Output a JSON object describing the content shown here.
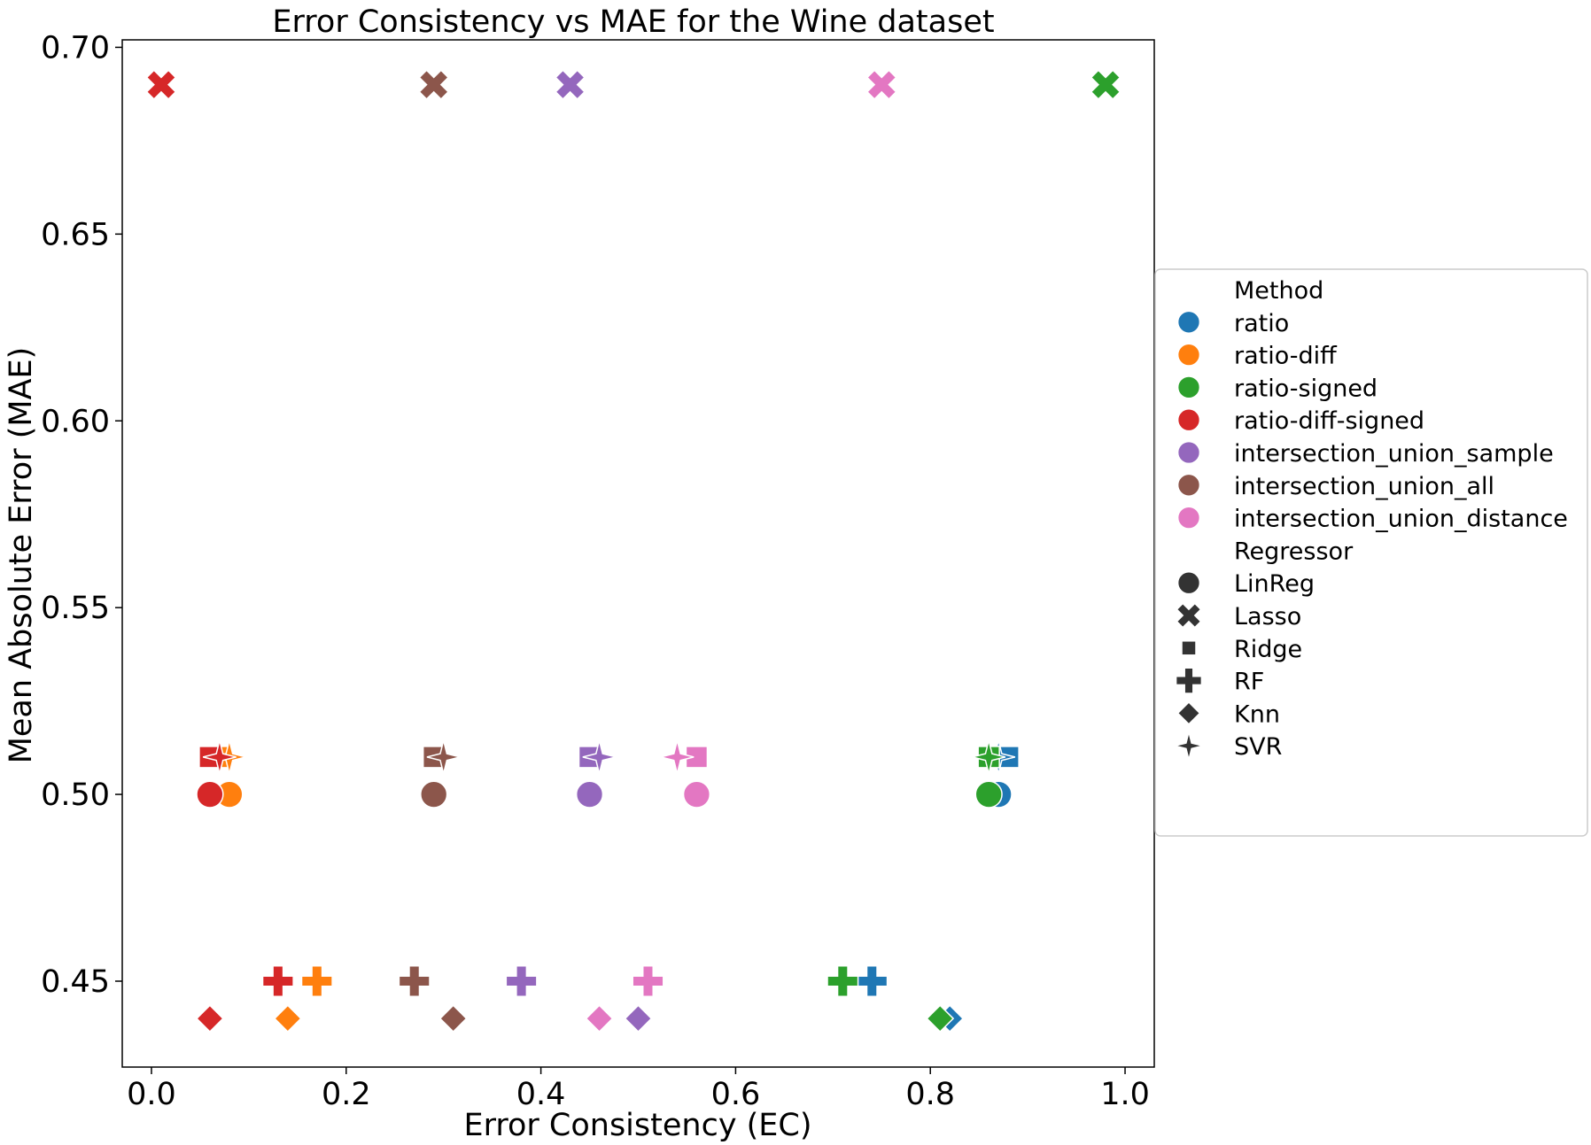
{
  "chart_data": {
    "type": "scatter",
    "title": "Error Consistency vs MAE for the Wine dataset",
    "xlabel": "Error Consistency (EC)",
    "ylabel": "Mean Absolute Error (MAE)",
    "xlim": [
      -0.03,
      1.03
    ],
    "ylim": [
      0.427,
      0.702
    ],
    "xticks": [
      "0.0",
      "0.2",
      "0.4",
      "0.6",
      "0.8",
      "1.0"
    ],
    "yticks": [
      "0.45",
      "0.50",
      "0.55",
      "0.60",
      "0.65",
      "0.70"
    ],
    "grid": false,
    "legend": {
      "placement": "right-outside",
      "method_title": "Method",
      "regressor_title": "Regressor",
      "methods": [
        {
          "name": "ratio",
          "color": "#1f77b4"
        },
        {
          "name": "ratio-diff",
          "color": "#ff7f0e"
        },
        {
          "name": "ratio-signed",
          "color": "#2ca02c"
        },
        {
          "name": "ratio-diff-signed",
          "color": "#d62728"
        },
        {
          "name": "intersection_union_sample",
          "color": "#9467bd"
        },
        {
          "name": "intersection_union_all",
          "color": "#8c564b"
        },
        {
          "name": "intersection_union_distance",
          "color": "#e377c2"
        }
      ],
      "regressors": [
        {
          "name": "LinReg",
          "marker": "circle"
        },
        {
          "name": "Lasso",
          "marker": "x"
        },
        {
          "name": "Ridge",
          "marker": "square"
        },
        {
          "name": "RF",
          "marker": "plus"
        },
        {
          "name": "Knn",
          "marker": "diamond"
        },
        {
          "name": "SVR",
          "marker": "star"
        }
      ]
    },
    "series": [
      {
        "name": "ratio",
        "points": [
          {
            "regressor": "LinReg",
            "x": 0.87,
            "y": 0.5
          },
          {
            "regressor": "Lasso",
            "x": 0.98,
            "y": 0.69
          },
          {
            "regressor": "Ridge",
            "x": 0.88,
            "y": 0.51
          },
          {
            "regressor": "RF",
            "x": 0.74,
            "y": 0.45
          },
          {
            "regressor": "Knn",
            "x": 0.82,
            "y": 0.44
          },
          {
            "regressor": "SVR",
            "x": 0.87,
            "y": 0.51
          }
        ]
      },
      {
        "name": "ratio-diff",
        "points": [
          {
            "regressor": "LinReg",
            "x": 0.08,
            "y": 0.5
          },
          {
            "regressor": "Lasso",
            "x": 0.01,
            "y": 0.69
          },
          {
            "regressor": "Ridge",
            "x": 0.07,
            "y": 0.51
          },
          {
            "regressor": "RF",
            "x": 0.17,
            "y": 0.45
          },
          {
            "regressor": "Knn",
            "x": 0.14,
            "y": 0.44
          },
          {
            "regressor": "SVR",
            "x": 0.08,
            "y": 0.51
          }
        ]
      },
      {
        "name": "ratio-signed",
        "points": [
          {
            "regressor": "LinReg",
            "x": 0.86,
            "y": 0.5
          },
          {
            "regressor": "Lasso",
            "x": 0.98,
            "y": 0.69
          },
          {
            "regressor": "Ridge",
            "x": 0.86,
            "y": 0.51
          },
          {
            "regressor": "RF",
            "x": 0.71,
            "y": 0.45
          },
          {
            "regressor": "Knn",
            "x": 0.81,
            "y": 0.44
          },
          {
            "regressor": "SVR",
            "x": 0.86,
            "y": 0.51
          }
        ]
      },
      {
        "name": "ratio-diff-signed",
        "points": [
          {
            "regressor": "LinReg",
            "x": 0.06,
            "y": 0.5
          },
          {
            "regressor": "Lasso",
            "x": 0.01,
            "y": 0.69
          },
          {
            "regressor": "Ridge",
            "x": 0.06,
            "y": 0.51
          },
          {
            "regressor": "RF",
            "x": 0.13,
            "y": 0.45
          },
          {
            "regressor": "Knn",
            "x": 0.06,
            "y": 0.44
          },
          {
            "regressor": "SVR",
            "x": 0.07,
            "y": 0.51
          }
        ]
      },
      {
        "name": "intersection_union_sample",
        "points": [
          {
            "regressor": "LinReg",
            "x": 0.45,
            "y": 0.5
          },
          {
            "regressor": "Lasso",
            "x": 0.43,
            "y": 0.69
          },
          {
            "regressor": "Ridge",
            "x": 0.45,
            "y": 0.51
          },
          {
            "regressor": "RF",
            "x": 0.38,
            "y": 0.45
          },
          {
            "regressor": "Knn",
            "x": 0.5,
            "y": 0.44
          },
          {
            "regressor": "SVR",
            "x": 0.46,
            "y": 0.51
          }
        ]
      },
      {
        "name": "intersection_union_all",
        "points": [
          {
            "regressor": "LinReg",
            "x": 0.29,
            "y": 0.5
          },
          {
            "regressor": "Lasso",
            "x": 0.29,
            "y": 0.69
          },
          {
            "regressor": "Ridge",
            "x": 0.29,
            "y": 0.51
          },
          {
            "regressor": "RF",
            "x": 0.27,
            "y": 0.45
          },
          {
            "regressor": "Knn",
            "x": 0.31,
            "y": 0.44
          },
          {
            "regressor": "SVR",
            "x": 0.3,
            "y": 0.51
          }
        ]
      },
      {
        "name": "intersection_union_distance",
        "points": [
          {
            "regressor": "LinReg",
            "x": 0.56,
            "y": 0.5
          },
          {
            "regressor": "Lasso",
            "x": 0.75,
            "y": 0.69
          },
          {
            "regressor": "Ridge",
            "x": 0.56,
            "y": 0.51
          },
          {
            "regressor": "RF",
            "x": 0.51,
            "y": 0.45
          },
          {
            "regressor": "Knn",
            "x": 0.46,
            "y": 0.44
          },
          {
            "regressor": "SVR",
            "x": 0.54,
            "y": 0.51
          }
        ]
      }
    ]
  }
}
